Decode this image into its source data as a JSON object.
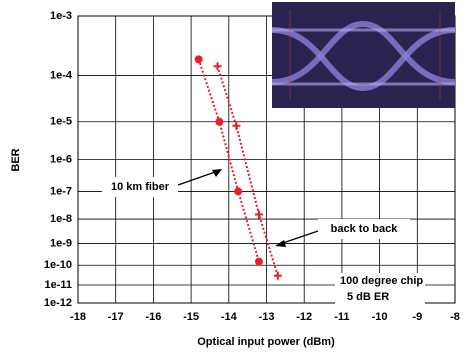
{
  "chart_data": {
    "type": "line",
    "y_scale": "ber",
    "x_label": "Optical input power (dBm)",
    "y_label": "BER",
    "xlim": [
      -18,
      -8
    ],
    "xticks": [
      -18,
      -17,
      -16,
      -15,
      -14,
      -13,
      -12,
      -11,
      -10,
      -9,
      -8
    ],
    "ylim": [
      0.001,
      1e-12
    ],
    "yticks": [
      {
        "value": 0.001,
        "label": "1e-3"
      },
      {
        "value": 0.0001,
        "label": "1e-4"
      },
      {
        "value": 1e-05,
        "label": "1e-5"
      },
      {
        "value": 1e-06,
        "label": "1e-6"
      },
      {
        "value": 1e-07,
        "label": "1e-7"
      },
      {
        "value": 1e-08,
        "label": "1e-8"
      },
      {
        "value": 1e-09,
        "label": "1e-9"
      },
      {
        "value": 1e-10,
        "label": "1e-10"
      },
      {
        "value": 1e-11,
        "label": "1e-11"
      },
      {
        "value": 1e-12,
        "label": "1e-12"
      }
    ],
    "grid": true,
    "series": [
      {
        "name": "10 km fiber",
        "color": "#e8202a",
        "marker": "circle",
        "x": [
          -14.8,
          -14.25,
          -13.75,
          -13.2
        ],
        "values": [
          0.0002,
          1e-05,
          1e-07,
          1.5e-10
        ]
      },
      {
        "name": "back to back",
        "color": "#e8202a",
        "marker": "plus",
        "x": [
          -14.3,
          -13.8,
          -13.2,
          -12.7
        ],
        "values": [
          0.00015,
          8e-06,
          1.5e-08,
          3e-11
        ]
      }
    ],
    "annotations": [
      "100 degree chip",
      "5 dB ER"
    ]
  }
}
